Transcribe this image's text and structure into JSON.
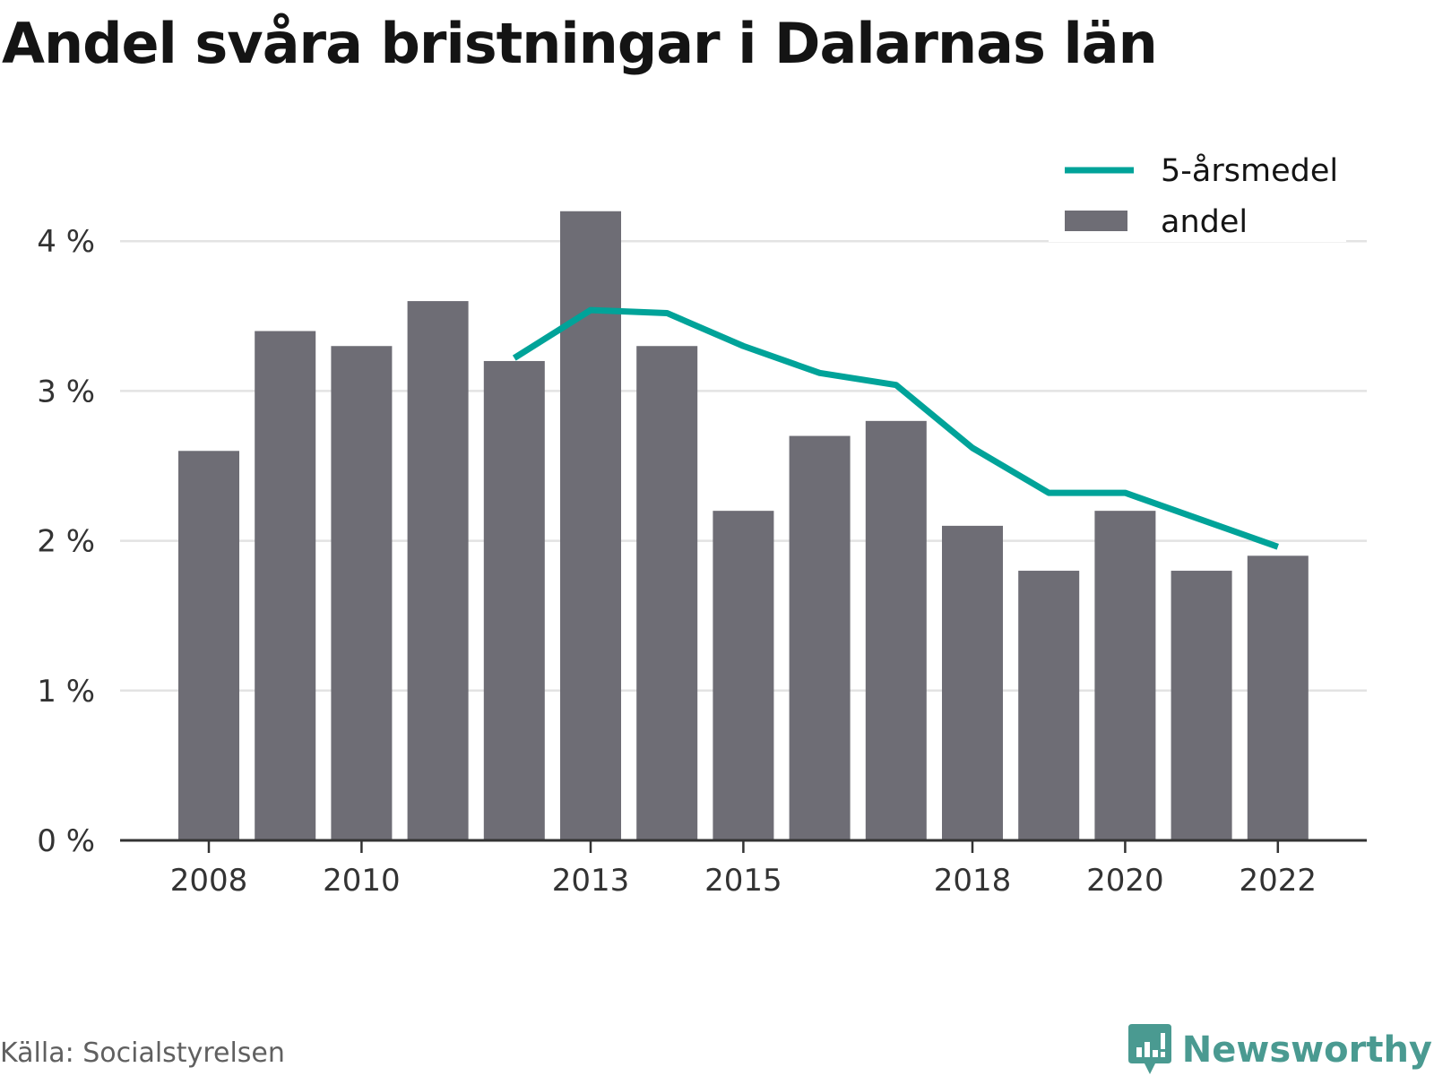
{
  "title": "Andel svåra bristningar i Dalarnas län",
  "source": "Källa: Socialstyrelsen",
  "brand": {
    "name": "Newsworthy",
    "icon": "newsworthy-logo-icon",
    "color": "#4a9a91"
  },
  "colors": {
    "bar": "#6e6d75",
    "line": "#00a399",
    "grid": "#e3e3e3",
    "axis": "#333333"
  },
  "chart_data": {
    "type": "bar",
    "title": "Andel svåra bristningar i Dalarnas län",
    "xlabel": "",
    "ylabel": "",
    "unit": "%",
    "ylim": [
      0,
      4.2
    ],
    "yticks": [
      0,
      1,
      2,
      3,
      4
    ],
    "ytick_labels": [
      "0 %",
      "1 %",
      "2 %",
      "3 %",
      "4 %"
    ],
    "xticks": [
      2008,
      2010,
      2013,
      2015,
      2018,
      2020,
      2022
    ],
    "xtick_labels": [
      "2008",
      "2010",
      "2013",
      "2015",
      "2018",
      "2020",
      "2022"
    ],
    "grid": true,
    "legend_position": "top-right",
    "series": [
      {
        "name": "andel",
        "type": "bar",
        "x": [
          2008,
          2009,
          2010,
          2011,
          2012,
          2013,
          2014,
          2015,
          2016,
          2017,
          2018,
          2019,
          2020,
          2021,
          2022
        ],
        "values": [
          2.6,
          3.4,
          3.3,
          3.6,
          3.2,
          4.2,
          3.3,
          2.2,
          2.7,
          2.8,
          2.1,
          1.8,
          2.2,
          1.8,
          1.9
        ]
      },
      {
        "name": "5-årsmedel",
        "type": "line",
        "x": [
          2012,
          2013,
          2014,
          2015,
          2016,
          2017,
          2018,
          2019,
          2020,
          2021,
          2022
        ],
        "values": [
          3.22,
          3.54,
          3.52,
          3.3,
          3.12,
          3.04,
          2.62,
          2.32,
          2.32,
          2.14,
          1.96
        ]
      }
    ],
    "legend": [
      {
        "label": "5-årsmedel",
        "symbol": "line"
      },
      {
        "label": "andel",
        "symbol": "bar"
      }
    ]
  }
}
